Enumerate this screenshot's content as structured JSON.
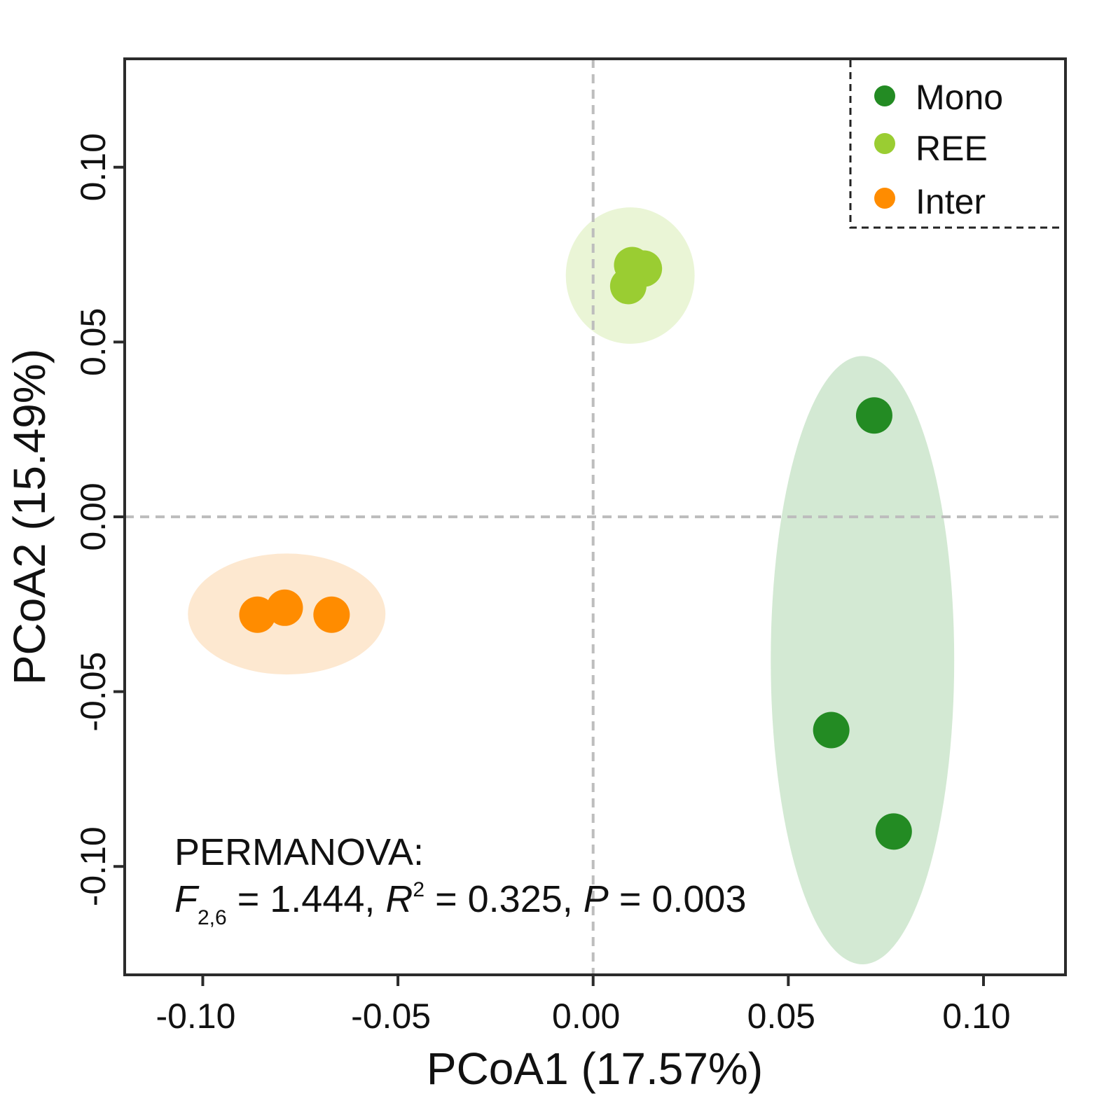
{
  "chart_data": {
    "type": "scatter",
    "xlabel": "PCoA1 (17.57%)",
    "ylabel": "PCoA2 (15.49%)",
    "xlim": [
      -0.12,
      0.121
    ],
    "ylim": [
      -0.131,
      0.131
    ],
    "xticks": [
      -0.1,
      -0.05,
      0.0,
      0.05,
      0.1
    ],
    "xtick_labels": [
      "-0.10",
      "-0.05",
      "0.00",
      "0.05",
      "0.10"
    ],
    "yticks": [
      -0.1,
      -0.05,
      0.0,
      0.05,
      0.1
    ],
    "ytick_labels": [
      "-0.10",
      "-0.05",
      "0.00",
      "0.05",
      "0.10"
    ],
    "reference_lines": {
      "x": 0,
      "y": 0,
      "style": "dashed"
    },
    "legend_position": "top-right",
    "series": [
      {
        "name": "Mono",
        "color": "#238B23",
        "ellipse_color": "#D3E9D3",
        "points": [
          [
            0.072,
            0.029
          ],
          [
            0.061,
            -0.061
          ],
          [
            0.077,
            -0.09
          ]
        ],
        "ellipse": {
          "cx": 0.069,
          "cy": -0.041,
          "rx": 0.0235,
          "ry": 0.087
        }
      },
      {
        "name": "REE",
        "color": "#9ACD32",
        "ellipse_color": "#EAF5D6",
        "points": [
          [
            0.01,
            0.072
          ],
          [
            0.013,
            0.071
          ],
          [
            0.009,
            0.066
          ]
        ],
        "ellipse": {
          "cx": 0.0095,
          "cy": 0.069,
          "rx": 0.0165,
          "ry": 0.0195
        }
      },
      {
        "name": "Inter",
        "color": "#FF8C00",
        "ellipse_color": "#FDE8D0",
        "points": [
          [
            -0.086,
            -0.028
          ],
          [
            -0.079,
            -0.026
          ],
          [
            -0.067,
            -0.028
          ]
        ],
        "ellipse": {
          "cx": -0.0785,
          "cy": -0.0278,
          "rx": 0.0253,
          "ry": 0.0173
        }
      }
    ],
    "annotation": {
      "line1": "PERMANOVA:",
      "f_symbol": "F",
      "f_subscript": "2,6",
      "f_value": " = 1.444, ",
      "r_symbol": "R",
      "r_superscript": "2",
      "r_value": " = 0.325, ",
      "p_symbol": "P",
      "p_value": " = 0.003"
    }
  }
}
